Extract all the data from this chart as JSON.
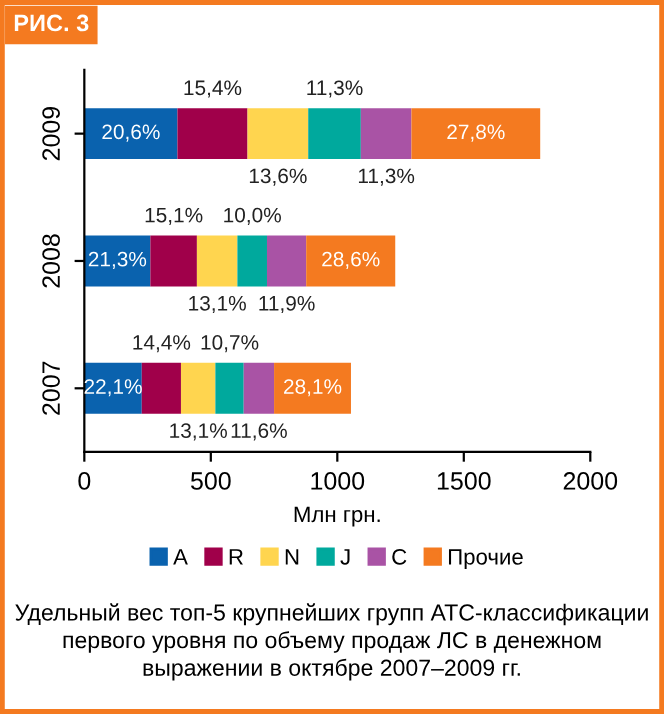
{
  "chart_data": {
    "type": "bar",
    "orientation": "horizontal",
    "stacked": true,
    "title": "РИС. 3",
    "categories": [
      "2009",
      "2008",
      "2007"
    ],
    "series": [
      {
        "name": "A",
        "color": "#0a62ae",
        "values": [
          368,
          261,
          227
        ]
      },
      {
        "name": "R",
        "color": "#a0004a",
        "values": [
          277,
          184,
          155
        ]
      },
      {
        "name": "N",
        "color": "#ffd54f",
        "values": [
          240,
          160,
          136
        ]
      },
      {
        "name": "J",
        "color": "#00a99d",
        "values": [
          208,
          117,
          112
        ]
      },
      {
        "name": "C",
        "color": "#a953a5",
        "values": [
          200,
          155,
          120
        ]
      },
      {
        "name": "Прочие",
        "color": "#f47a20",
        "values": [
          509,
          352,
          304
        ]
      }
    ],
    "xlim": [
      0,
      2000
    ],
    "xticks": [
      0,
      500,
      1000,
      1500,
      2000
    ],
    "xlabel": "Млн грн.",
    "legend": "bottom",
    "grid": false,
    "annotations": [
      "20,6%",
      "15,4%",
      "13,6%",
      "11,3%",
      "11,3%",
      "27,8%",
      "21,3%",
      "15,1%",
      "13,1%",
      "10,0%",
      "11,9%",
      "28,6%",
      "22,1%",
      "14,4%",
      "13,1%",
      "10,7%",
      "11,6%",
      "28,1%",
      "Удельный вес топ-5 крупнейших групп АТС-классификации первого уровня по объему продаж ЛС в денежном выражении в октябре 2007–2009 гг."
    ]
  }
}
